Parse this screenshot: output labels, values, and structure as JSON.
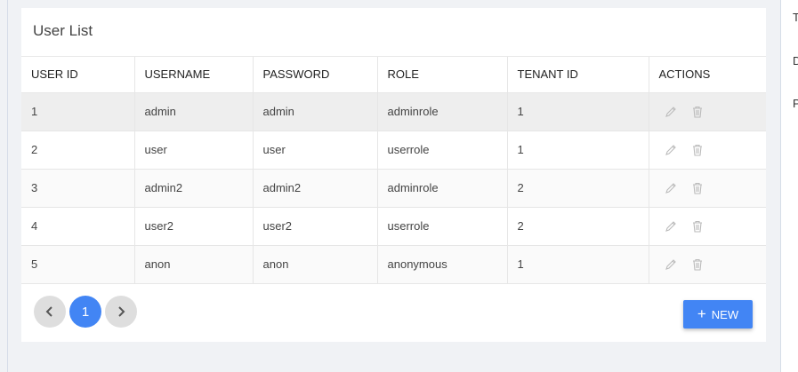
{
  "title": "User List",
  "columns": [
    "USER ID",
    "USERNAME",
    "PASSWORD",
    "ROLE",
    "TENANT ID",
    "ACTIONS"
  ],
  "rows": [
    [
      "1",
      "admin",
      "admin",
      "adminrole",
      "1"
    ],
    [
      "2",
      "user",
      "user",
      "userrole",
      "1"
    ],
    [
      "3",
      "admin2",
      "admin2",
      "adminrole",
      "2"
    ],
    [
      "4",
      "user2",
      "user2",
      "userrole",
      "2"
    ],
    [
      "5",
      "anon",
      "anon",
      "anonymous",
      "1"
    ]
  ],
  "pagination": {
    "current": "1"
  },
  "new_button": {
    "icon": "+",
    "label": "NEW"
  },
  "right_panel": [
    "T",
    "D",
    "P"
  ],
  "colors": {
    "accent": "#4285f4"
  }
}
